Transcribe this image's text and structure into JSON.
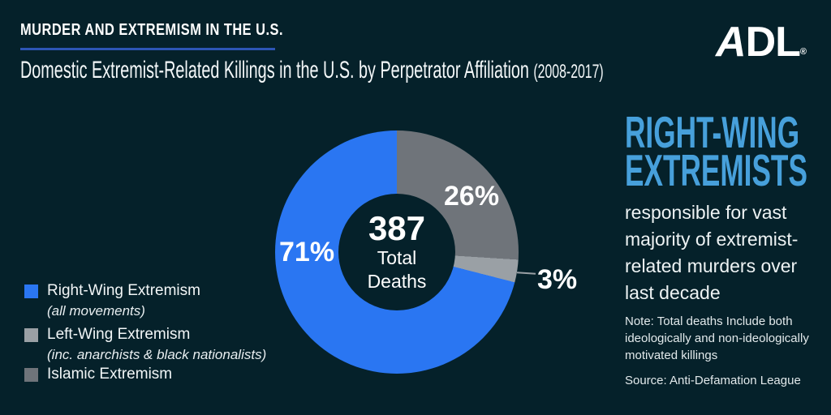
{
  "header": {
    "kicker": "MURDER AND EXTREMISM IN THE U.S.",
    "title": "Domestic Extremist-Related Killings in the U.S. by Perpetrator Affiliation",
    "title_suffix": "(2008-2017)",
    "logo_a": "A",
    "logo_dl": "DL",
    "logo_reg": "®"
  },
  "chart_data": {
    "type": "pie",
    "title": "Domestic Extremist-Related Killings in the U.S. by Perpetrator Affiliation (2008-2017)",
    "total": 387,
    "start_angle": "12 o'clock",
    "direction": "clockwise",
    "slices": [
      {
        "label": "Islamic Extremism",
        "value": 26,
        "display": "26%",
        "color": "#6f747a"
      },
      {
        "label": "Left-Wing Extremism (inc. anarchists & black nationalists)",
        "value": 3,
        "display": "3%",
        "color": "#9aa0a5"
      },
      {
        "label": "Right-Wing Extremism (all movements)",
        "value": 71,
        "display": "71%",
        "color": "#2a76f2"
      }
    ],
    "center": {
      "value": "387",
      "label_line1": "Total",
      "label_line2": "Deaths"
    }
  },
  "legend": {
    "items": [
      {
        "label": "Right-Wing Extremism",
        "sublabel": "(all movements)",
        "color": "#2a76f2"
      },
      {
        "label": "Left-Wing Extremism",
        "sublabel": "(inc. anarchists & black nationalists)",
        "color": "#9aa0a5"
      },
      {
        "label": "Islamic Extremism",
        "sublabel": "",
        "color": "#6f747a"
      }
    ]
  },
  "sidebar": {
    "headline_line1": "RIGHT-WING",
    "headline_line2": "EXTREMISTS",
    "body": "responsible for vast majority of extremist-related murders over last decade",
    "note": "Note: Total deaths Include both ideologically and non-ideologically motivated killings",
    "source": "Source: Anti-Defamation League"
  },
  "colors": {
    "background": "#05212a",
    "accent_blue": "#2a76f2",
    "gray_dark": "#6f747a",
    "gray_light": "#9aa0a5",
    "headline_blue": "#47a0db",
    "underline_blue": "#2d55b5"
  }
}
